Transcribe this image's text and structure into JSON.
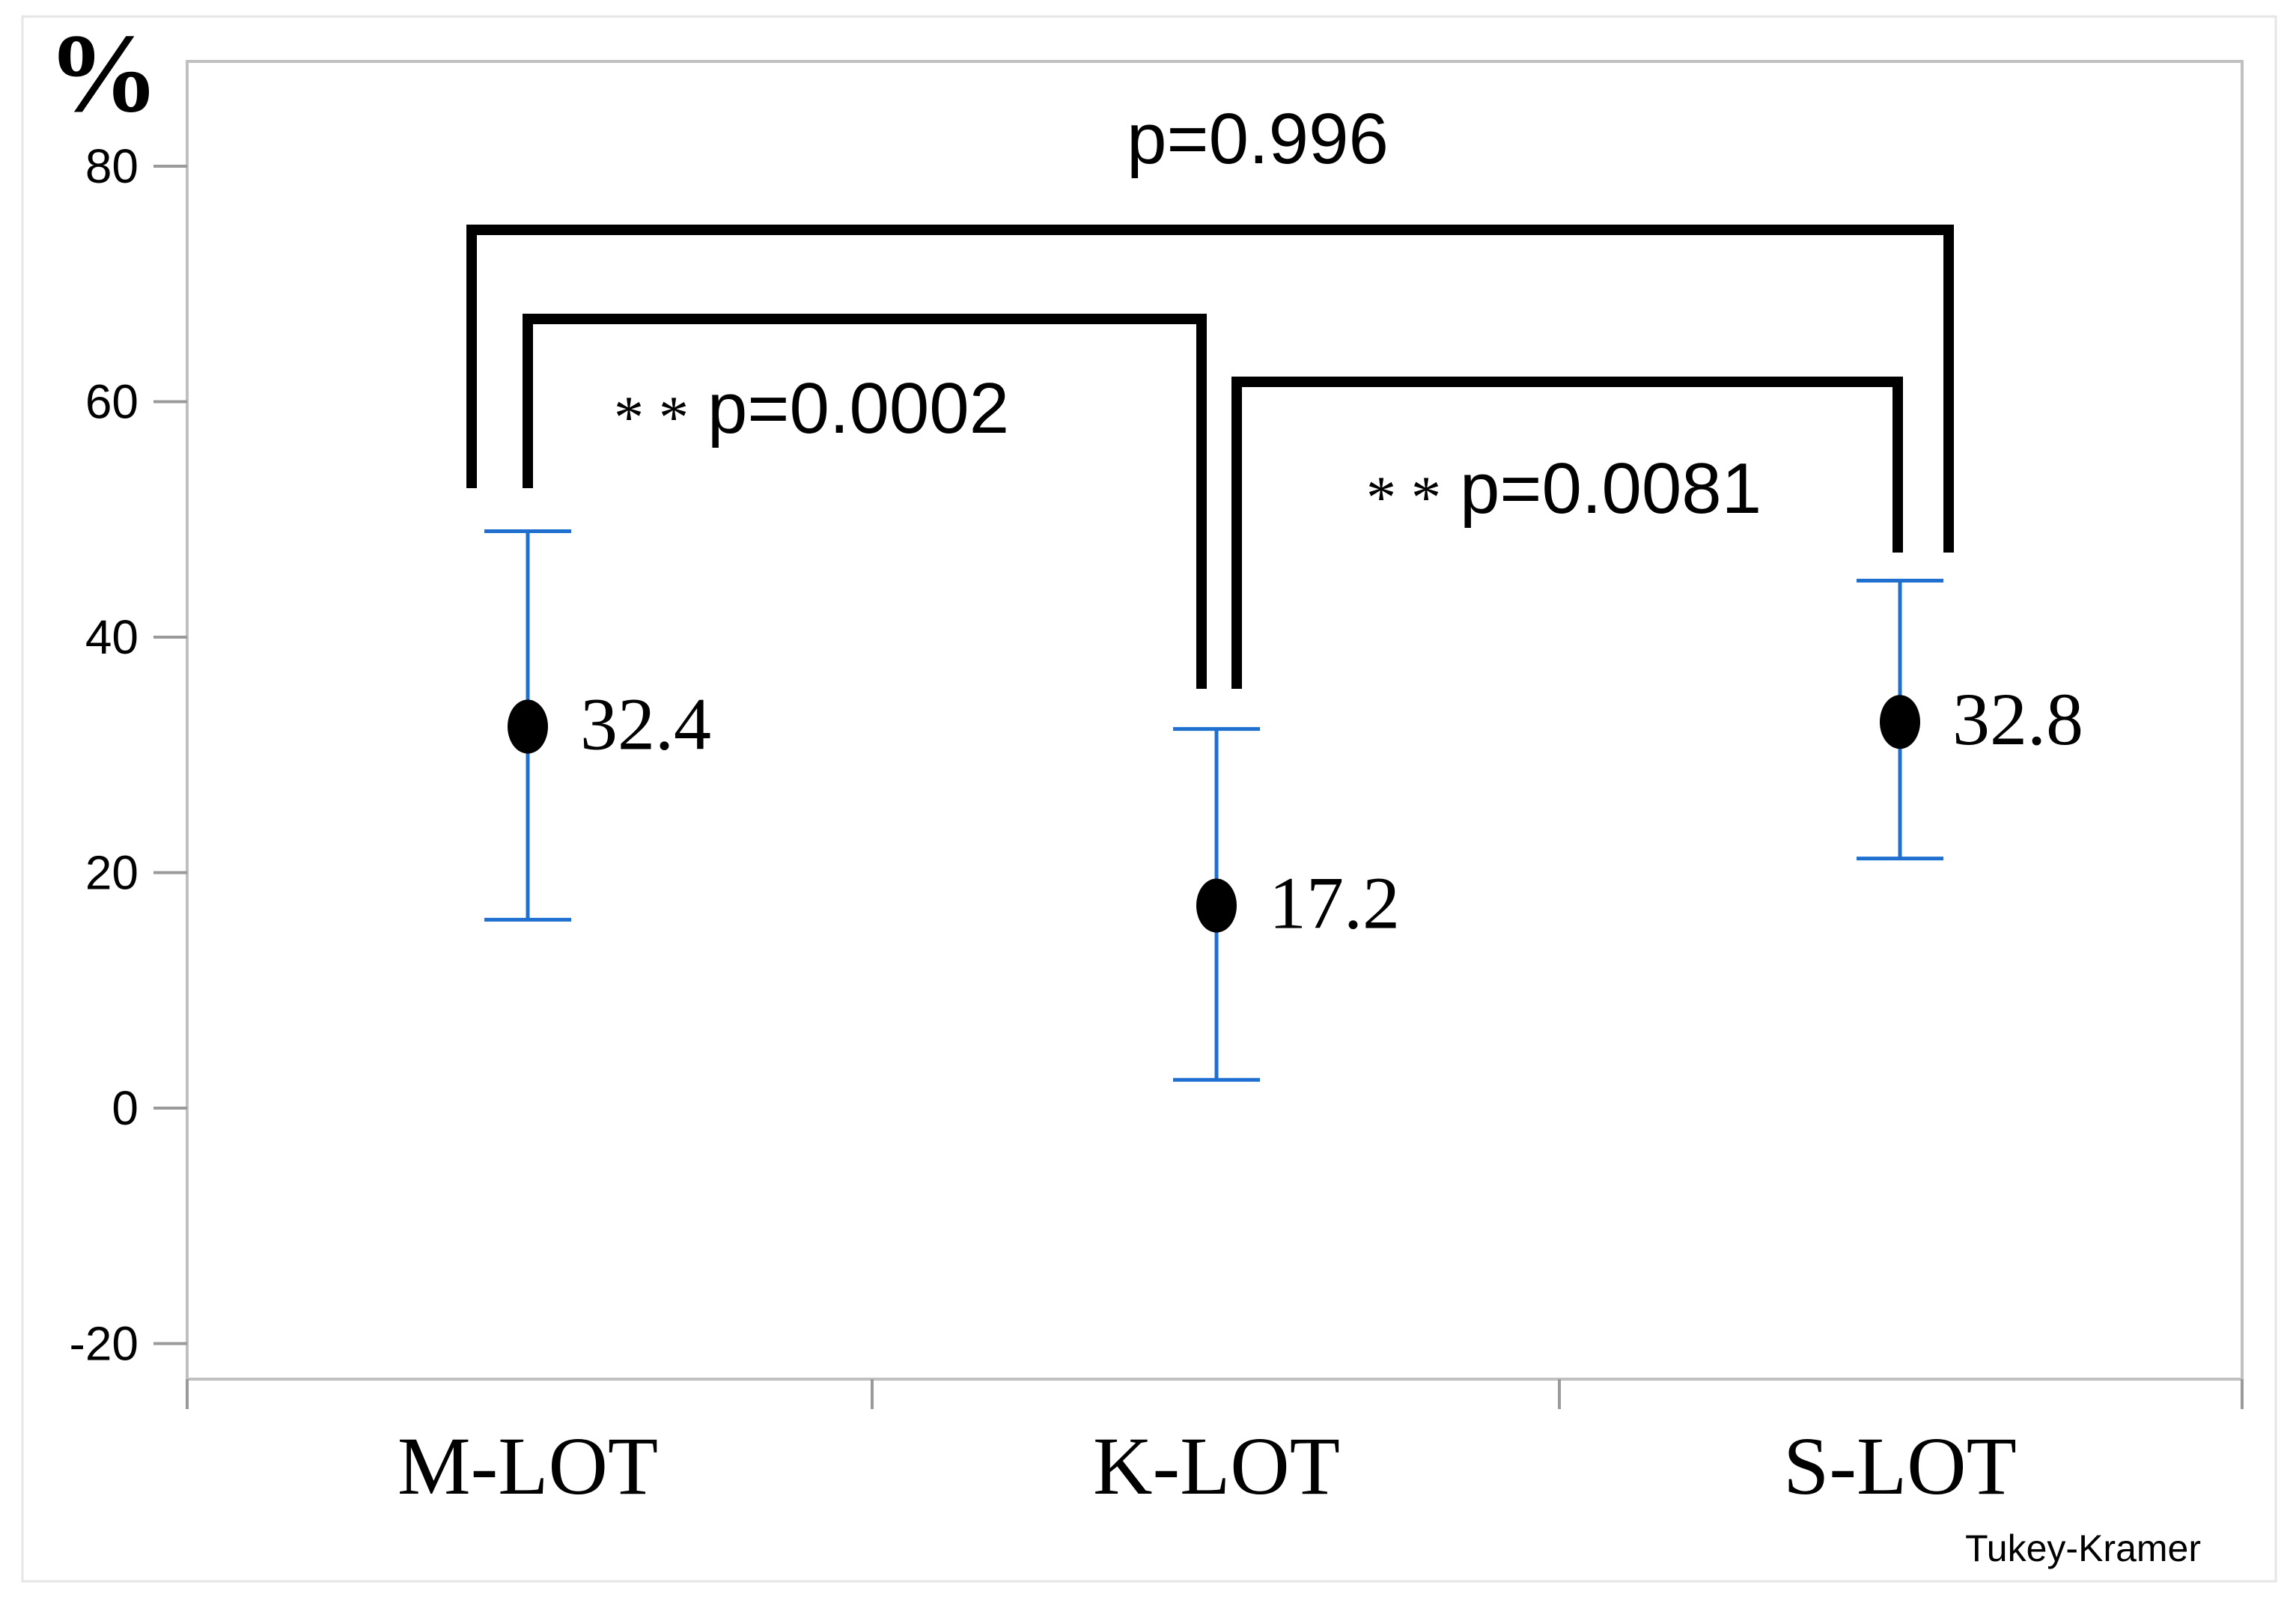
{
  "chart_data": {
    "type": "scatter",
    "y_unit_label": "%",
    "yticks": [
      80,
      60,
      40,
      20,
      0,
      -20
    ],
    "ylim": [
      -22,
      85
    ],
    "grid": false,
    "categories": [
      "M-LOT",
      "K-LOT",
      "S-LOT"
    ],
    "points": [
      {
        "category": "M-LOT",
        "mean": 32.4,
        "label": "32.4",
        "lower": 16,
        "upper": 49
      },
      {
        "category": "K-LOT",
        "mean": 17.2,
        "label": "17.2",
        "lower": 2.4,
        "upper": 32.2
      },
      {
        "category": "S-LOT",
        "mean": 32.8,
        "label": "32.8",
        "lower": 21.2,
        "upper": 44.8
      }
    ],
    "comparisons": [
      {
        "from": "M-LOT",
        "to": "S-LOT",
        "label": "p=0.996",
        "stars": ""
      },
      {
        "from": "M-LOT",
        "to": "K-LOT",
        "label": "p=0.0002",
        "stars": "* *"
      },
      {
        "from": "K-LOT",
        "to": "S-LOT",
        "label": "p=0.0081",
        "stars": "* *"
      }
    ],
    "footnote": "Tukey-Kramer",
    "colors": {
      "errorbar": "#1f6fd1",
      "marker": "#000000",
      "bracket": "#000000",
      "axis": "#9a9a9a",
      "frame": "#c0c0c0"
    }
  }
}
